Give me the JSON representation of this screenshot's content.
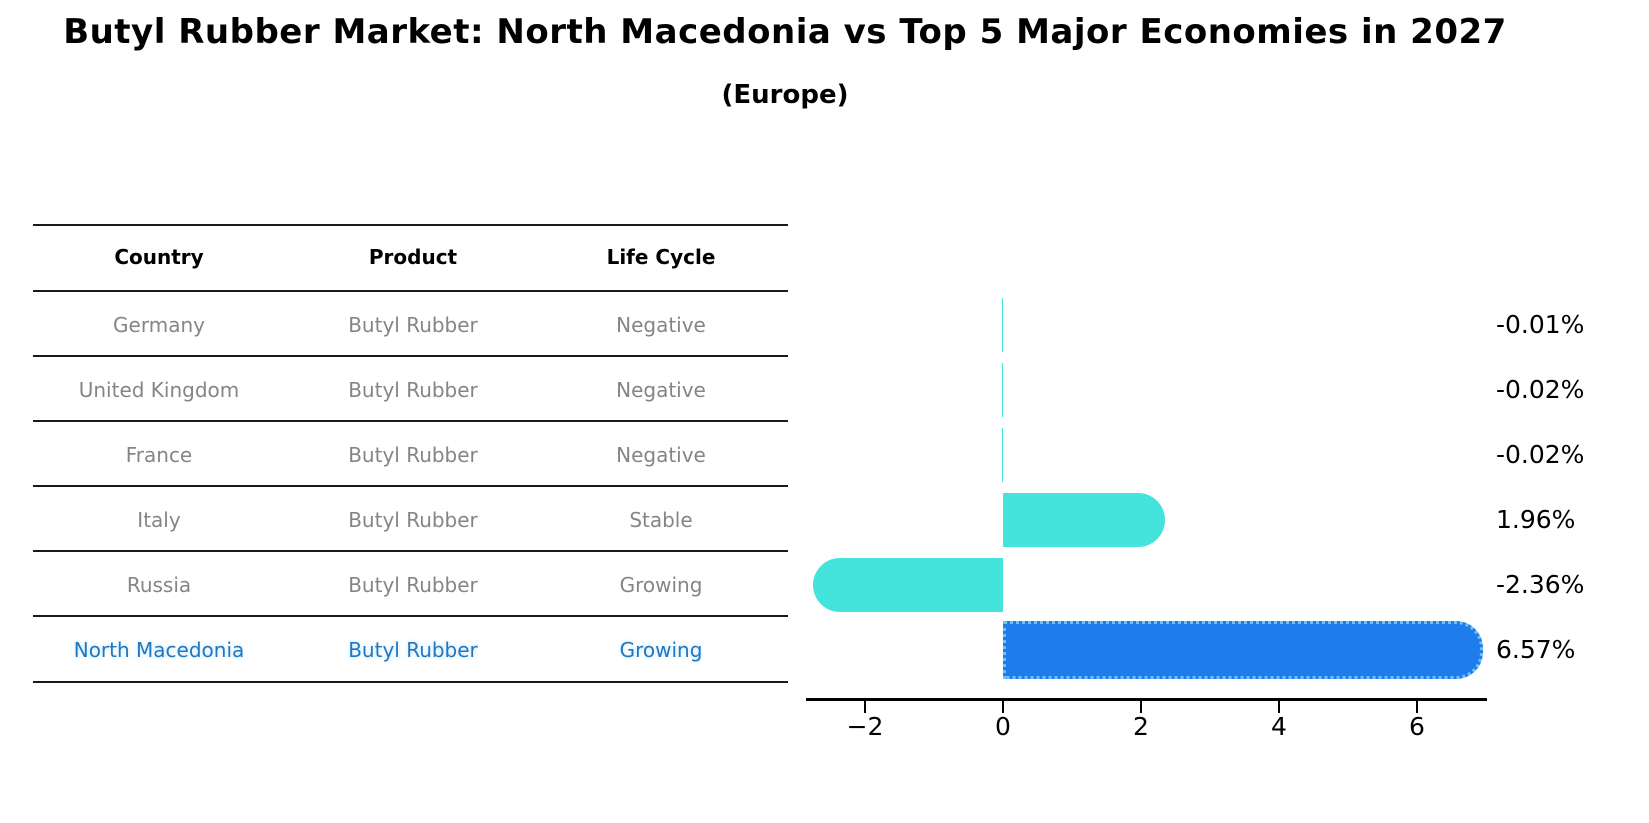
{
  "title": "Butyl Rubber Market: North Macedonia vs Top 5 Major Economies in 2027",
  "subtitle": "(Europe)",
  "table": {
    "headers": [
      "Country",
      "Product",
      "Life Cycle"
    ],
    "rows": [
      {
        "country": "Germany",
        "product": "Butyl Rubber",
        "life_cycle": "Negative"
      },
      {
        "country": "United Kingdom",
        "product": "Butyl Rubber",
        "life_cycle": "Negative"
      },
      {
        "country": "France",
        "product": "Butyl Rubber",
        "life_cycle": "Negative"
      },
      {
        "country": "Italy",
        "product": "Butyl Rubber",
        "life_cycle": "Stable"
      },
      {
        "country": "Russia",
        "product": "Butyl Rubber",
        "life_cycle": "Growing"
      },
      {
        "country": "North Macedonia",
        "product": "Butyl Rubber",
        "life_cycle": "Growing"
      }
    ],
    "highlight_row": 5
  },
  "chart_data": {
    "type": "bar",
    "orientation": "horizontal",
    "categories": [
      "Germany",
      "United Kingdom",
      "France",
      "Italy",
      "Russia",
      "North Macedonia"
    ],
    "values": [
      -0.01,
      -0.02,
      -0.02,
      1.96,
      -2.36,
      6.57
    ],
    "value_labels": [
      "-0.01%",
      "-0.02%",
      "-0.02%",
      "1.96%",
      "-2.36%",
      "6.57%"
    ],
    "xticks": [
      -2,
      0,
      2,
      4,
      6
    ],
    "xtick_labels": [
      "−2",
      "0",
      "2",
      "4",
      "6"
    ],
    "xlim": [
      -2.85,
      7.0
    ],
    "grid": false,
    "legend": false,
    "bar_color": "#44e3dc",
    "highlight_bar_color": "#1f7ceb",
    "highlight_border_color": "#6fc0f7",
    "highlight_text_color": "#1f78c0",
    "highlight_index": 5
  }
}
